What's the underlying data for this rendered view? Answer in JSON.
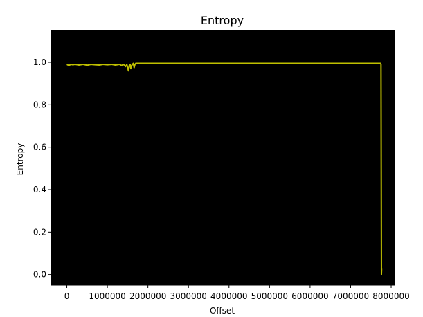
{
  "chart_data": {
    "type": "line",
    "title": "Entropy",
    "xlabel": "Offset",
    "ylabel": "Entropy",
    "xlim": [
      -385000,
      8085000
    ],
    "ylim": [
      -0.05,
      1.15
    ],
    "xticks": [
      0,
      1000000,
      2000000,
      3000000,
      4000000,
      5000000,
      6000000,
      7000000,
      8000000
    ],
    "xtick_labels": [
      "0",
      "1000000",
      "2000000",
      "3000000",
      "4000000",
      "5000000",
      "6000000",
      "7000000",
      "8000000"
    ],
    "yticks": [
      0.0,
      0.2,
      0.4,
      0.6,
      0.8,
      1.0
    ],
    "ytick_labels": [
      "0.0",
      "0.2",
      "0.4",
      "0.6",
      "0.8",
      "1.0"
    ],
    "grid": false,
    "background_color": "#000000",
    "line_color": "#bfbf00",
    "series": [
      {
        "x": [
          0,
          50000,
          100000,
          150000,
          200000,
          300000,
          400000,
          500000,
          600000,
          700000,
          800000,
          900000,
          1000000,
          1100000,
          1200000,
          1300000,
          1350000,
          1400000,
          1450000,
          1480000,
          1500000,
          1520000,
          1540000,
          1560000,
          1580000,
          1600000,
          1620000,
          1640000,
          1660000,
          1680000,
          1700000,
          1750000,
          2000000,
          3000000,
          4000000,
          5000000,
          6000000,
          7000000,
          7600000,
          7700000,
          7740000,
          7750000,
          7755000,
          7760000,
          7765000
        ],
        "y": [
          0.99,
          0.985,
          0.99,
          0.988,
          0.99,
          0.987,
          0.99,
          0.986,
          0.99,
          0.988,
          0.987,
          0.99,
          0.988,
          0.99,
          0.987,
          0.99,
          0.985,
          0.99,
          0.98,
          0.99,
          0.975,
          0.96,
          0.985,
          0.99,
          0.97,
          0.985,
          0.99,
          0.995,
          0.975,
          0.99,
          0.995,
          0.995,
          0.995,
          0.995,
          0.995,
          0.995,
          0.995,
          0.995,
          0.995,
          0.995,
          0.995,
          0.99,
          0.5,
          0.0,
          0.03
        ]
      }
    ]
  }
}
